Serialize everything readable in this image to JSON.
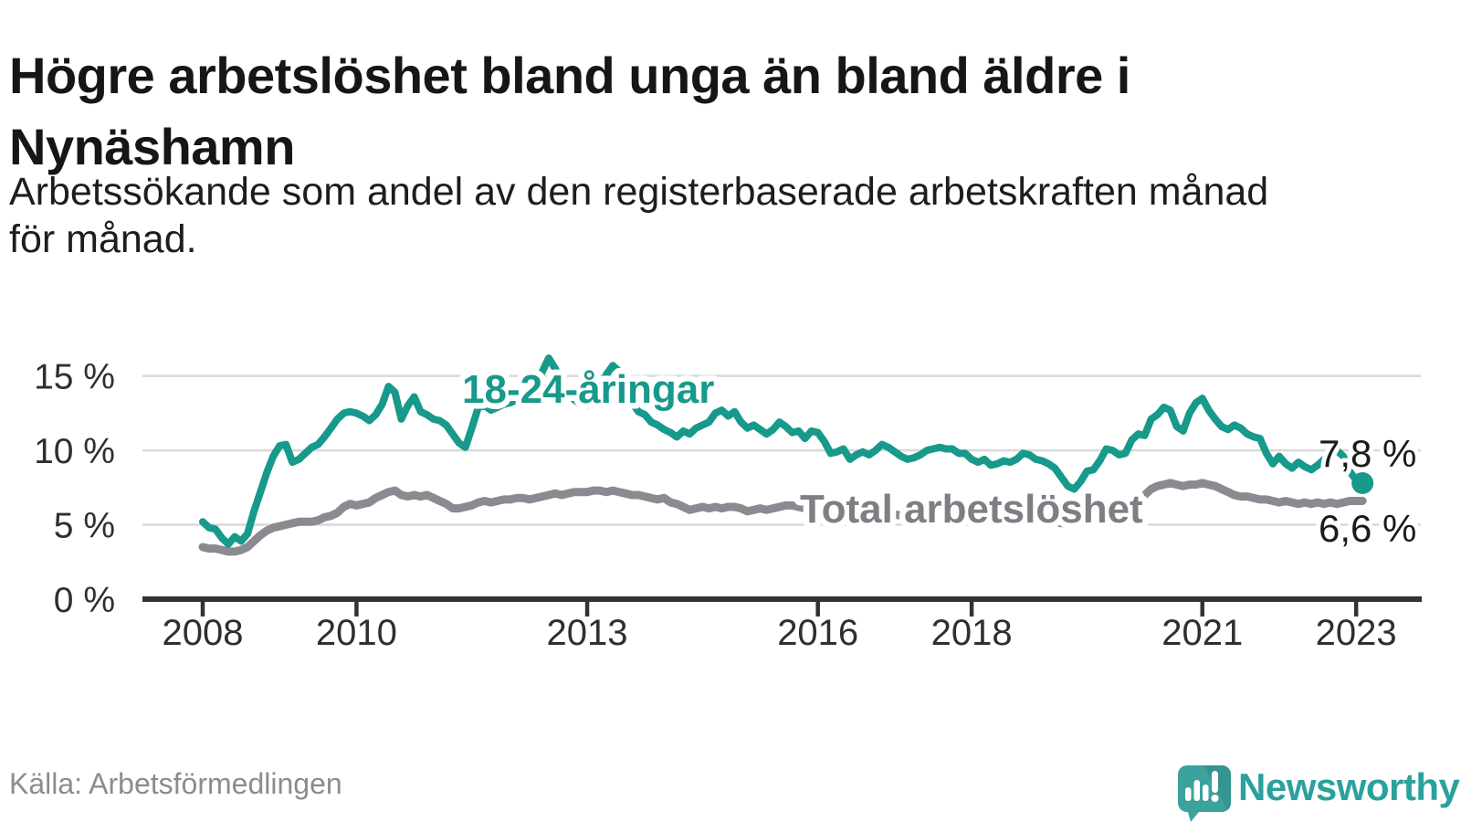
{
  "header": {
    "title_lines": [
      "Högre arbetslöshet bland unga än bland äldre i",
      "Nynäshamn"
    ],
    "subtitle_lines": [
      "Arbetssökande som andel av den registerbaserade arbetskraften månad",
      "för månad."
    ]
  },
  "footer": {
    "source": "Källa: Arbetsförmedlingen",
    "logo_text": "Newsworthy"
  },
  "colors": {
    "youth_line": "#17998c",
    "total_line": "#8a8a90",
    "total_label": "#7e7e84",
    "end_label_text": "#1b1b1b",
    "axis": "#333333",
    "gridline": "#d9d9d9",
    "tick_label": "#2f2f2f",
    "logo_teal": "#3ba29d",
    "logo_teal_dark": "#349490"
  },
  "chart_data": {
    "type": "line",
    "title": "Högre arbetslöshet bland unga än bland äldre i Nynäshamn",
    "subtitle": "Arbetssökande som andel av den registerbaserade arbetskraften månad för månad.",
    "unit": "%",
    "frequency": "monthly",
    "x_start": "2008-01",
    "x_end": "2023-02",
    "ylim": [
      0,
      17
    ],
    "grid": "horizontal",
    "y_ticks": [
      {
        "value": 0,
        "label": "0 %"
      },
      {
        "value": 5,
        "label": "5 %"
      },
      {
        "value": 10,
        "label": "10 %"
      },
      {
        "value": 15,
        "label": "15 %"
      }
    ],
    "x_ticks": [
      {
        "year": 2008,
        "label": "2008"
      },
      {
        "year": 2010,
        "label": "2010"
      },
      {
        "year": 2013,
        "label": "2013"
      },
      {
        "year": 2016,
        "label": "2016"
      },
      {
        "year": 2018,
        "label": "2018"
      },
      {
        "year": 2021,
        "label": "2021"
      },
      {
        "year": 2023,
        "label": "2023"
      }
    ],
    "series": [
      {
        "name": "18-24-åringar",
        "end_label": "7,8 %",
        "end_value": 7.8,
        "values": [
          5.2,
          4.8,
          4.7,
          4.1,
          3.7,
          4.2,
          3.9,
          4.4,
          5.9,
          7.2,
          8.5,
          9.6,
          10.3,
          10.4,
          9.2,
          9.4,
          9.8,
          10.2,
          10.4,
          10.9,
          11.5,
          12.1,
          12.5,
          12.6,
          12.5,
          12.3,
          12.0,
          12.4,
          13.1,
          14.3,
          13.9,
          12.1,
          13.0,
          13.6,
          12.6,
          12.4,
          12.1,
          12.0,
          11.7,
          11.1,
          10.5,
          10.2,
          11.5,
          12.9,
          13.0,
          12.7,
          12.9,
          13.1,
          13.2,
          13.4,
          13.2,
          13.6,
          14.3,
          15.3,
          16.2,
          15.5,
          14.6,
          13.9,
          13.4,
          13.1,
          13.0,
          13.4,
          14.3,
          15.1,
          15.7,
          15.3,
          14.4,
          13.2,
          12.6,
          12.4,
          11.9,
          11.7,
          11.4,
          11.2,
          10.9,
          11.3,
          11.1,
          11.5,
          11.7,
          11.9,
          12.5,
          12.7,
          12.3,
          12.6,
          11.9,
          11.5,
          11.7,
          11.4,
          11.1,
          11.4,
          11.9,
          11.6,
          11.2,
          11.3,
          10.8,
          11.3,
          11.2,
          10.6,
          9.8,
          9.9,
          10.1,
          9.4,
          9.7,
          9.9,
          9.7,
          10.0,
          10.4,
          10.2,
          9.9,
          9.6,
          9.4,
          9.5,
          9.7,
          10.0,
          10.1,
          10.2,
          10.1,
          10.1,
          9.8,
          9.8,
          9.4,
          9.2,
          9.4,
          9.0,
          9.1,
          9.3,
          9.2,
          9.4,
          9.8,
          9.7,
          9.4,
          9.3,
          9.1,
          8.8,
          8.2,
          7.6,
          7.4,
          7.9,
          8.6,
          8.7,
          9.3,
          10.1,
          10.0,
          9.7,
          9.8,
          10.7,
          11.1,
          11.0,
          12.1,
          12.4,
          12.9,
          12.7,
          11.6,
          11.3,
          12.5,
          13.2,
          13.5,
          12.7,
          12.1,
          11.6,
          11.4,
          11.7,
          11.5,
          11.1,
          10.9,
          10.8,
          9.8,
          9.1,
          9.6,
          9.1,
          8.8,
          9.2,
          8.9,
          8.7,
          9.0,
          9.4,
          9.7,
          10.0,
          9.6,
          8.6,
          8.0,
          7.8
        ]
      },
      {
        "name": "Total arbetslöshet",
        "end_label": "6,6 %",
        "end_value": 6.6,
        "values": [
          3.5,
          3.4,
          3.4,
          3.3,
          3.2,
          3.2,
          3.3,
          3.5,
          3.9,
          4.3,
          4.6,
          4.8,
          4.9,
          5.0,
          5.1,
          5.2,
          5.2,
          5.2,
          5.3,
          5.5,
          5.6,
          5.8,
          6.2,
          6.4,
          6.3,
          6.4,
          6.5,
          6.8,
          7.0,
          7.2,
          7.3,
          7.0,
          6.9,
          7.0,
          6.9,
          7.0,
          6.8,
          6.6,
          6.4,
          6.1,
          6.1,
          6.2,
          6.3,
          6.5,
          6.6,
          6.5,
          6.6,
          6.7,
          6.7,
          6.8,
          6.8,
          6.7,
          6.8,
          6.9,
          7.0,
          7.1,
          7.0,
          7.1,
          7.2,
          7.2,
          7.2,
          7.3,
          7.3,
          7.2,
          7.3,
          7.2,
          7.1,
          7.0,
          7.0,
          6.9,
          6.8,
          6.7,
          6.8,
          6.5,
          6.4,
          6.2,
          6.0,
          6.1,
          6.2,
          6.1,
          6.2,
          6.1,
          6.2,
          6.2,
          6.1,
          5.9,
          6.0,
          6.1,
          6.0,
          6.1,
          6.2,
          6.3,
          6.3,
          6.2,
          6.1,
          6.1,
          6.1,
          6.0,
          5.9,
          5.9,
          5.8,
          5.8,
          5.9,
          5.9,
          5.8,
          5.8,
          5.7,
          5.7,
          5.7,
          5.6,
          5.6,
          5.5,
          5.5,
          5.6,
          5.6,
          5.7,
          5.6,
          5.6,
          5.5,
          5.5,
          5.5,
          5.4,
          5.4,
          5.3,
          5.3,
          5.3,
          5.4,
          5.4,
          5.3,
          5.3,
          5.2,
          5.2,
          5.2,
          5.2,
          5.1,
          5.1,
          5.2,
          5.3,
          5.3,
          5.4,
          5.4,
          5.5,
          5.5,
          5.6,
          5.7,
          5.8,
          6.3,
          7.0,
          7.4,
          7.6,
          7.7,
          7.8,
          7.7,
          7.6,
          7.7,
          7.7,
          7.8,
          7.7,
          7.6,
          7.4,
          7.2,
          7.0,
          6.9,
          6.9,
          6.8,
          6.7,
          6.7,
          6.6,
          6.5,
          6.6,
          6.5,
          6.4,
          6.5,
          6.4,
          6.5,
          6.4,
          6.5,
          6.4,
          6.5,
          6.6,
          6.6,
          6.6
        ]
      }
    ]
  }
}
